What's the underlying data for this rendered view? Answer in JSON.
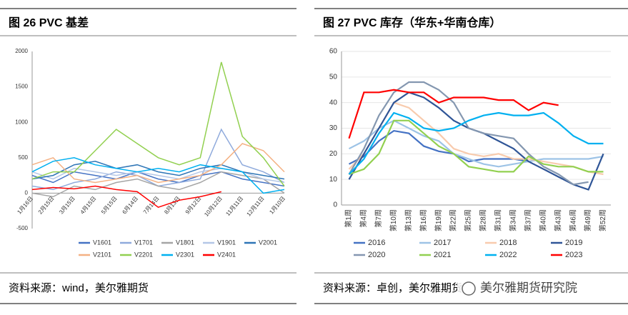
{
  "captions": [
    {
      "title": "图 26   PVC 基差",
      "source": "资料来源：wind，美尔雅期货"
    },
    {
      "title": "图 27   PVC 库存（华东+华南仓库）",
      "source": "资料来源：卓创，美尔雅期货"
    }
  ],
  "watermark": "美尔雅期货研究院",
  "chart_data": [
    {
      "type": "line",
      "categories": [
        "1月16日",
        "2月15日",
        "3月15日",
        "4月15日",
        "5月15日",
        "6月14日",
        "7月14日",
        "8月13日",
        "9月12日",
        "10月12日",
        "11月11日",
        "12月11日",
        "1月10日"
      ],
      "ylim": [
        -500,
        2000
      ],
      "yticks": [
        -500,
        0,
        500,
        1000,
        1500,
        2000
      ],
      "series": [
        {
          "name": "V1601",
          "color": "#4472c4",
          "values": [
            250,
            150,
            300,
            250,
            200,
            300,
            200,
            150,
            250,
            300,
            200,
            150,
            100
          ]
        },
        {
          "name": "V1701",
          "color": "#8faadc",
          "values": [
            100,
            50,
            150,
            200,
            300,
            250,
            100,
            150,
            200,
            900,
            400,
            300,
            150
          ]
        },
        {
          "name": "V1801",
          "color": "#a5a5a5",
          "values": [
            0,
            -50,
            100,
            50,
            150,
            200,
            100,
            50,
            150,
            300,
            250,
            200,
            0
          ]
        },
        {
          "name": "V1901",
          "color": "#b4c7e7",
          "values": [
            300,
            200,
            350,
            300,
            250,
            300,
            250,
            200,
            300,
            350,
            300,
            200,
            150
          ]
        },
        {
          "name": "V2001",
          "color": "#2e75b6",
          "values": [
            200,
            250,
            400,
            450,
            350,
            400,
            300,
            250,
            350,
            400,
            300,
            250,
            200
          ]
        },
        {
          "name": "V2101",
          "color": "#f4b183",
          "values": [
            400,
            500,
            200,
            150,
            200,
            250,
            150,
            200,
            250,
            400,
            700,
            600,
            300
          ]
        },
        {
          "name": "V2201",
          "color": "#92d050",
          "values": [
            200,
            300,
            300,
            600,
            900,
            700,
            500,
            400,
            500,
            1850,
            800,
            500,
            100
          ]
        },
        {
          "name": "V2301",
          "color": "#00b0f0",
          "values": [
            300,
            450,
            500,
            400,
            350,
            300,
            350,
            300,
            400,
            350,
            300,
            0,
            50
          ]
        },
        {
          "name": "V2401",
          "color": "#ff0000",
          "values": [
            50,
            80,
            60,
            100,
            50,
            20,
            -200,
            -100,
            -50,
            20,
            null,
            null,
            null
          ]
        }
      ]
    },
    {
      "type": "line",
      "categories": [
        "第1周",
        "第4周",
        "第7周",
        "第10周",
        "第13周",
        "第16周",
        "第19周",
        "第22周",
        "第25周",
        "第28周",
        "第31周",
        "第34周",
        "第37周",
        "第40周",
        "第43周",
        "第46周",
        "第49周",
        "第52周"
      ],
      "ylim": [
        0,
        60
      ],
      "yticks": [
        0,
        10,
        20,
        30,
        40,
        50,
        60
      ],
      "series": [
        {
          "name": "2016",
          "color": "#4472c4",
          "values": [
            16,
            19,
            25,
            29,
            28,
            23,
            21,
            20,
            17,
            18,
            18,
            18,
            17,
            null,
            null,
            null,
            null,
            null
          ]
        },
        {
          "name": "2017",
          "color": "#9dc3e6",
          "values": [
            22,
            25,
            30,
            33,
            30,
            27,
            25,
            20,
            18,
            16,
            15,
            16,
            17,
            18,
            18,
            18,
            18,
            19
          ]
        },
        {
          "name": "2018",
          "color": "#f8cbad",
          "values": [
            14,
            20,
            30,
            40,
            38,
            33,
            28,
            22,
            20,
            19,
            20,
            18,
            18,
            17,
            16,
            15,
            13,
            12
          ]
        },
        {
          "name": "2019",
          "color": "#2f5597",
          "values": [
            10,
            20,
            30,
            40,
            44,
            42,
            38,
            33,
            30,
            28,
            25,
            22,
            17,
            14,
            11,
            8,
            6,
            20
          ]
        },
        {
          "name": "2020",
          "color": "#8497b0",
          "values": [
            12,
            22,
            35,
            44,
            48,
            48,
            45,
            40,
            30,
            28,
            27,
            26,
            20,
            15,
            12,
            8,
            9,
            null
          ]
        },
        {
          "name": "2021",
          "color": "#92d050",
          "values": [
            12,
            14,
            20,
            33,
            33,
            28,
            23,
            20,
            15,
            14,
            13,
            13,
            19,
            16,
            15,
            15,
            13,
            13
          ]
        },
        {
          "name": "2022",
          "color": "#00b0f0",
          "values": [
            12,
            18,
            28,
            36,
            34,
            30,
            29,
            30,
            33,
            35,
            36,
            35,
            35,
            36,
            32,
            27,
            24,
            24
          ]
        },
        {
          "name": "2023",
          "color": "#ff0000",
          "values": [
            26,
            44,
            44,
            45,
            44,
            44,
            40,
            42,
            42,
            42,
            41,
            41,
            37,
            40,
            39,
            null,
            null,
            null
          ]
        }
      ]
    }
  ]
}
